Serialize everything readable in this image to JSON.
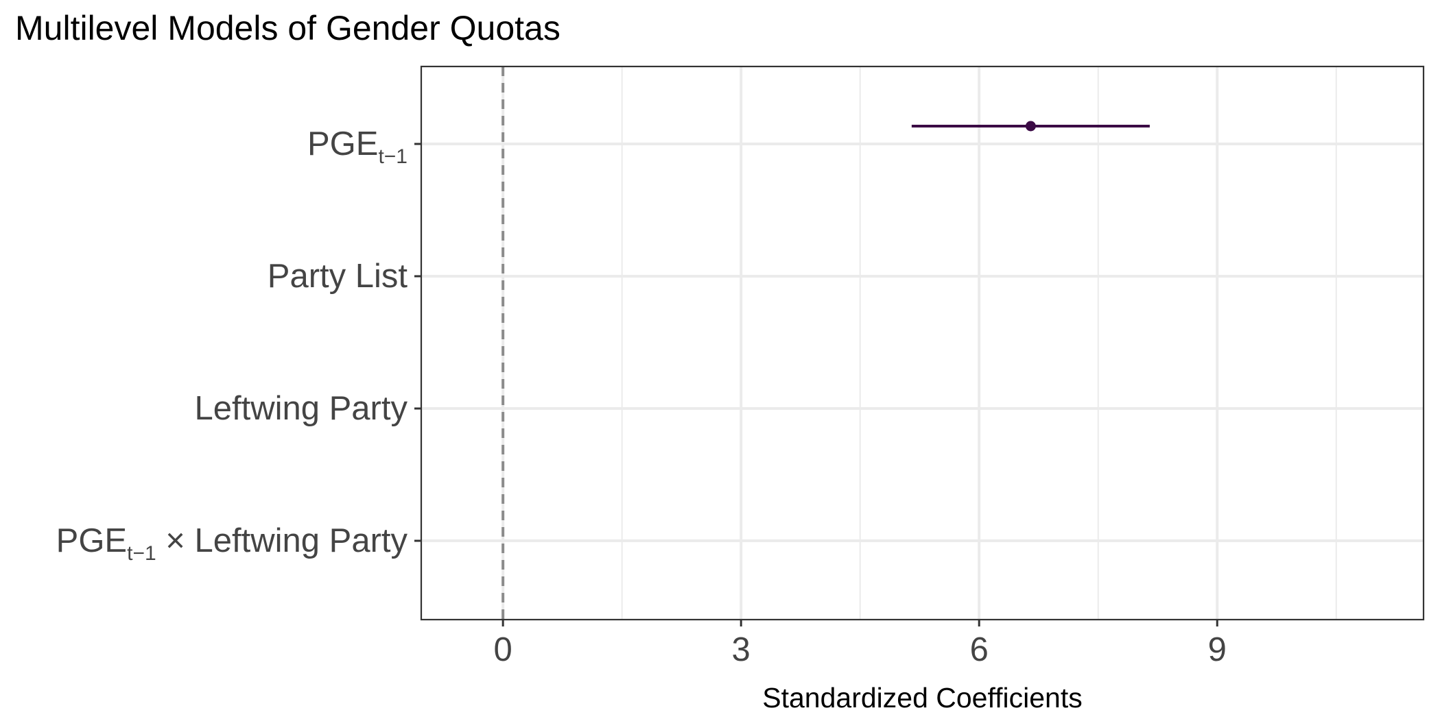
{
  "chart_data": {
    "type": "coefficient-plot",
    "title": "Multilevel Models of Gender Quotas",
    "xlabel": "Standardized Coefficients",
    "ylabel": "",
    "xlim": [
      -1.03,
      11.6
    ],
    "x_ticks": [
      0,
      3,
      6,
      9
    ],
    "grid": true,
    "reference_line": {
      "x": 0,
      "style": "dashed",
      "color": "#8c8c8c"
    },
    "terms": [
      {
        "label_parts": [
          {
            "text": "PGE"
          },
          {
            "text": "t−1",
            "sub": true
          }
        ]
      },
      {
        "label_parts": [
          {
            "text": "Party List"
          }
        ]
      },
      {
        "label_parts": [
          {
            "text": "Leftwing Party"
          }
        ]
      },
      {
        "label_parts": [
          {
            "text": "PGE"
          },
          {
            "text": "t−1",
            "sub": true
          },
          {
            "text": " × Leftwing Party"
          }
        ]
      }
    ],
    "estimates": [
      {
        "term_index": 0,
        "estimate": 6.65,
        "conf_low": 5.15,
        "conf_high": 8.15
      }
    ],
    "colors": {
      "estimate": "#3b0a45",
      "grid": "#ebebeb",
      "panel_border": "#333333"
    }
  }
}
